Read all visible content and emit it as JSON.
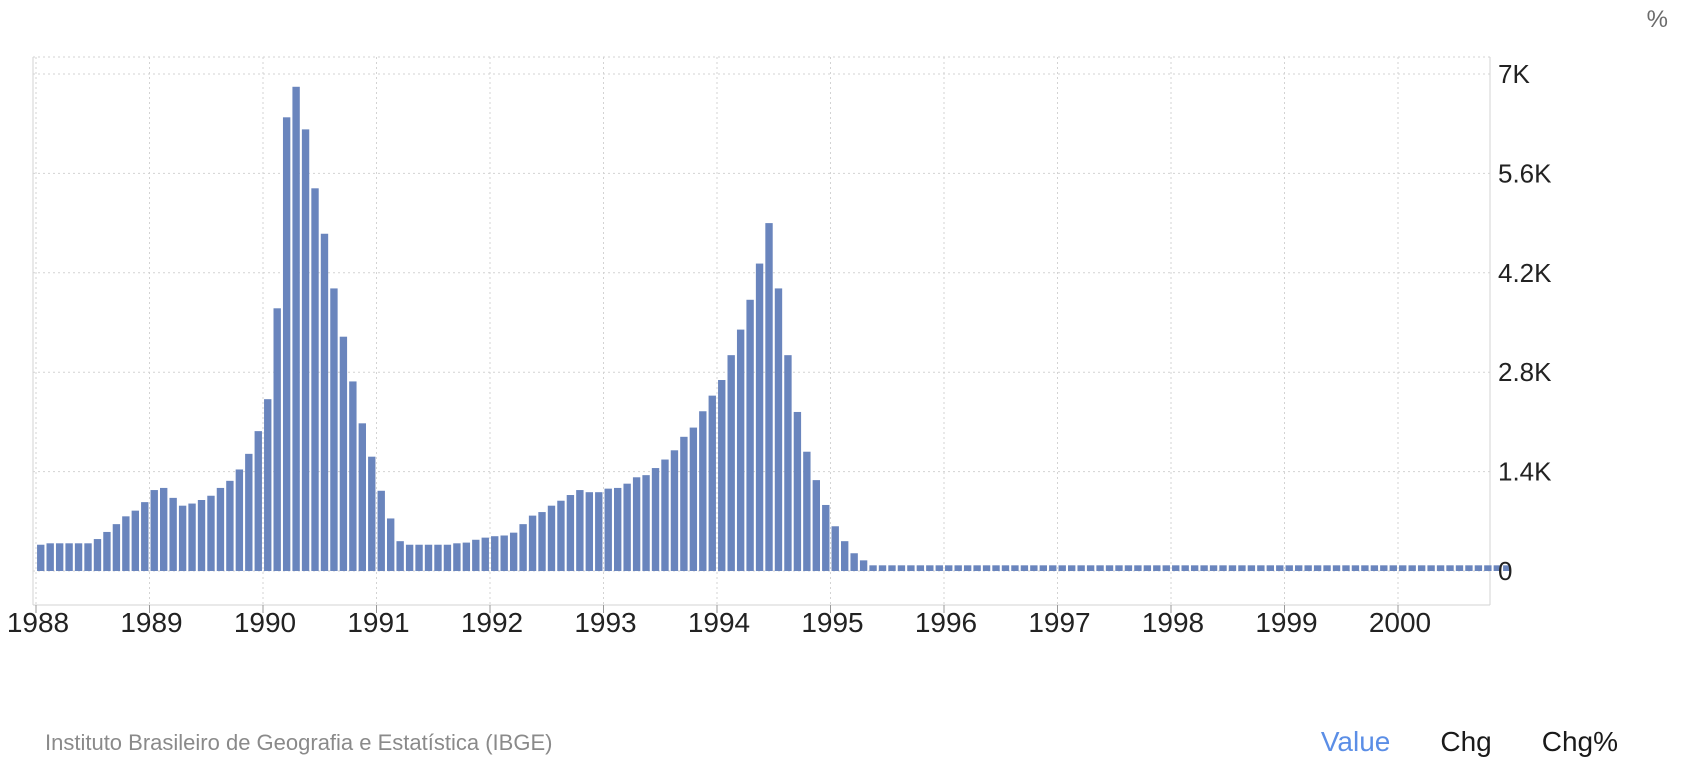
{
  "unit_label": "%",
  "source": "Instituto Brasileiro de Geografia e Estatística (IBGE)",
  "toggles": [
    {
      "label": "Value",
      "active": true
    },
    {
      "label": "Chg",
      "active": false
    },
    {
      "label": "Chg%",
      "active": false
    }
  ],
  "colors": {
    "bar": "#6a85bd",
    "grid": "#d3d3d3",
    "active_toggle": "#5b8ee6"
  },
  "chart_data": {
    "type": "bar",
    "title": "",
    "xlabel": "",
    "ylabel": "%",
    "ylim": [
      -560,
      7300
    ],
    "y_ticks": [
      0,
      1400,
      2800,
      4200,
      5600,
      7000
    ],
    "y_tick_labels": [
      "0",
      "1.4K",
      "2.8K",
      "4.2K",
      "5.6K",
      "7K"
    ],
    "x_ticks": [
      "1988",
      "1989",
      "1990",
      "1991",
      "1992",
      "1993",
      "1994",
      "1995",
      "1996",
      "1997",
      "1998",
      "1999",
      "2000"
    ],
    "grid": true,
    "frequency": "monthly",
    "start": "1988-01",
    "end": "2000-12",
    "series": [
      {
        "values": [
          370,
          390,
          390,
          390,
          390,
          390,
          450,
          550,
          660,
          770,
          850,
          970,
          1140,
          1170,
          1030,
          920,
          950,
          1000,
          1060,
          1170,
          1270,
          1430,
          1650,
          1970,
          2420,
          3700,
          6390,
          6820,
          6220,
          5390,
          4750,
          3980,
          3300,
          2670,
          2080,
          1610,
          1130,
          740,
          420,
          370,
          370,
          370,
          370,
          370,
          390,
          400,
          440,
          470,
          490,
          500,
          540,
          660,
          780,
          830,
          920,
          990,
          1070,
          1140,
          1110,
          1110,
          1160,
          1170,
          1230,
          1320,
          1350,
          1450,
          1570,
          1700,
          1890,
          2020,
          2250,
          2470,
          2690,
          3040,
          3400,
          3820,
          4330,
          4900,
          3980,
          3040,
          2240,
          1680,
          1280,
          930,
          630,
          420,
          250,
          150,
          80,
          80,
          80,
          80,
          80,
          80,
          80,
          80,
          80,
          80,
          80,
          80,
          80,
          80,
          80,
          80,
          80,
          80,
          80,
          80,
          80,
          80,
          80,
          80,
          80,
          80,
          80,
          80,
          80,
          80,
          80,
          80,
          80,
          80,
          80,
          80,
          80,
          80,
          80,
          80,
          80,
          80,
          80,
          80,
          80,
          80,
          80,
          80,
          80,
          80,
          80,
          80,
          80,
          80,
          80,
          80,
          80,
          80,
          80,
          80,
          80,
          80,
          80,
          80,
          80,
          80,
          80,
          80
        ]
      }
    ]
  }
}
